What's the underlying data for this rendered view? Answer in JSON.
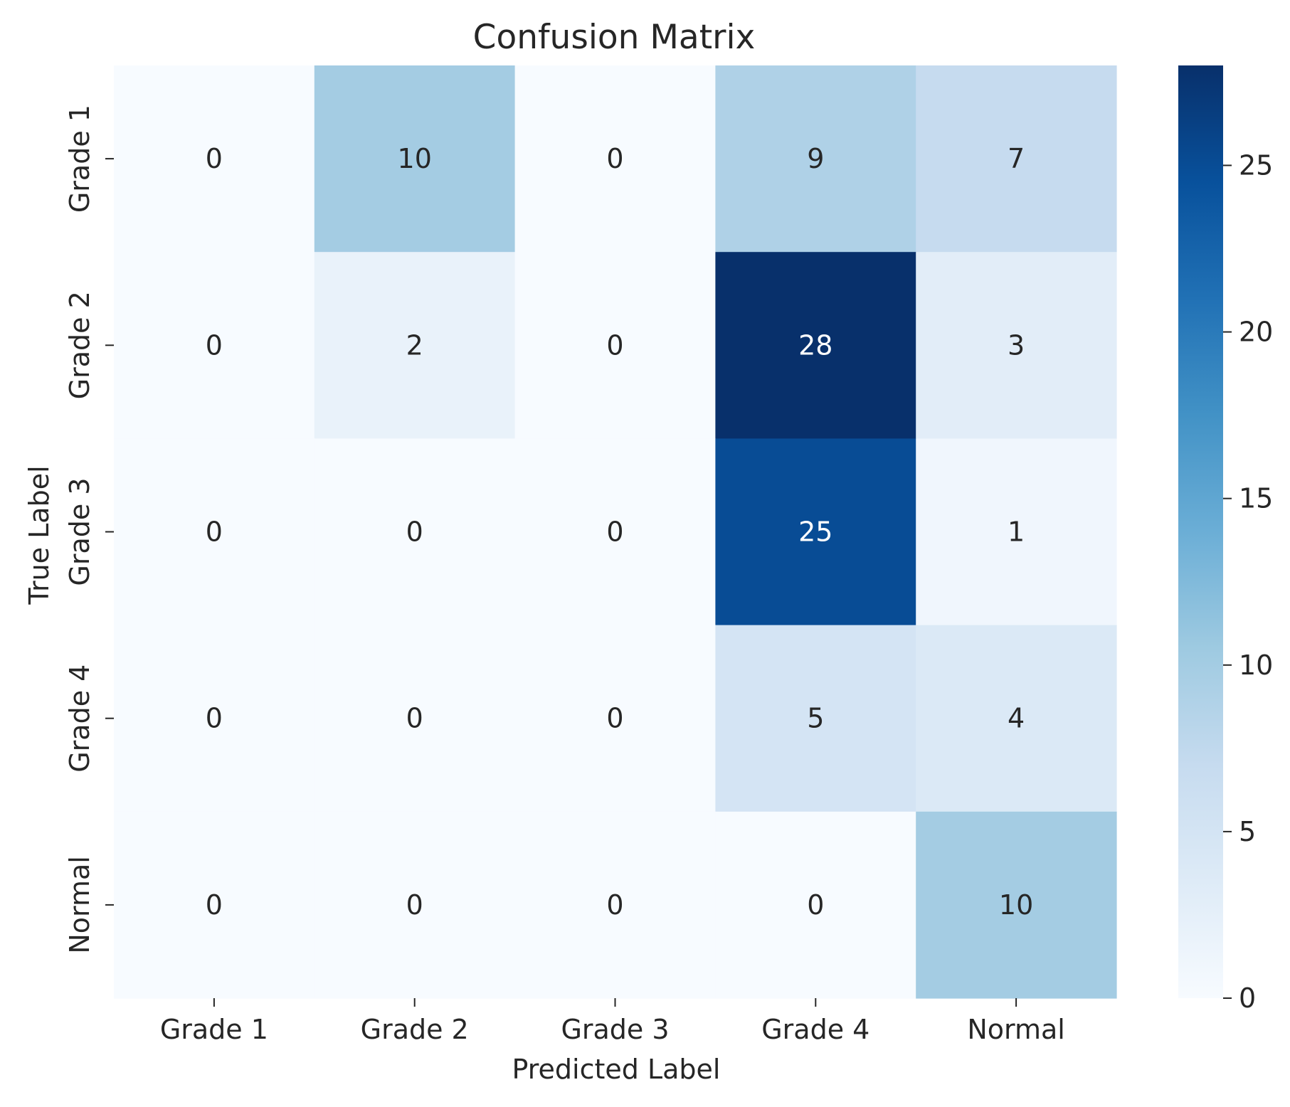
{
  "chart_data": {
    "type": "heatmap",
    "title": "Confusion Matrix",
    "xlabel": "Predicted Label",
    "ylabel": "True Label",
    "x_categories": [
      "Grade 1",
      "Grade 2",
      "Grade 3",
      "Grade 4",
      "Normal"
    ],
    "y_categories": [
      "Grade 1",
      "Grade 2",
      "Grade 3",
      "Grade 4",
      "Normal"
    ],
    "values": [
      [
        0,
        10,
        0,
        9,
        7
      ],
      [
        0,
        2,
        0,
        28,
        3
      ],
      [
        0,
        0,
        0,
        25,
        1
      ],
      [
        0,
        0,
        0,
        5,
        4
      ],
      [
        0,
        0,
        0,
        0,
        10
      ]
    ],
    "colormap": "Blues",
    "colormap_stops": [
      "#f7fbff",
      "#deebf7",
      "#c6dbef",
      "#9ecae1",
      "#6baed6",
      "#4292c6",
      "#2171b5",
      "#08519c",
      "#08306b"
    ],
    "text_color_dark": "#262626",
    "text_color_light": "#ffffff",
    "colorbar": {
      "range": [
        0,
        28
      ],
      "ticks": [
        0,
        5,
        10,
        15,
        20,
        25
      ],
      "tick_labels": [
        "0",
        "5",
        "10",
        "15",
        "20",
        "25"
      ]
    }
  }
}
